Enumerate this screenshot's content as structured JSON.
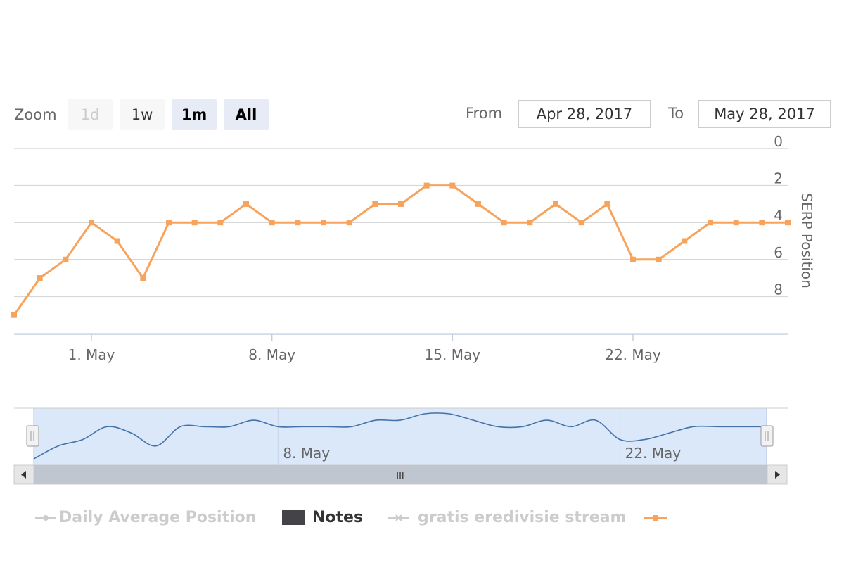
{
  "range_selector": {
    "zoom_label": "Zoom",
    "buttons": [
      {
        "label": "1d",
        "state": "disabled"
      },
      {
        "label": "1w",
        "state": "normal"
      },
      {
        "label": "1m",
        "state": "hover"
      },
      {
        "label": "All",
        "state": "selected"
      }
    ],
    "from_label": "From",
    "from_value": "Apr 28, 2017",
    "to_label": "To",
    "to_value": "May 28, 2017"
  },
  "chart_data": {
    "type": "line",
    "title": "",
    "ylabel": "SERP Position",
    "xlabel": "",
    "y_reversed": true,
    "ylim": [
      0,
      10
    ],
    "y_ticks": [
      "0",
      "2",
      "4",
      "6",
      "8"
    ],
    "x_tick_labels": [
      "1. May",
      "8. May",
      "15. May",
      "22. May"
    ],
    "x": [
      "2017-04-28",
      "2017-04-29",
      "2017-04-30",
      "2017-05-01",
      "2017-05-02",
      "2017-05-03",
      "2017-05-04",
      "2017-05-05",
      "2017-05-06",
      "2017-05-07",
      "2017-05-08",
      "2017-05-09",
      "2017-05-10",
      "2017-05-11",
      "2017-05-12",
      "2017-05-13",
      "2017-05-14",
      "2017-05-15",
      "2017-05-16",
      "2017-05-17",
      "2017-05-18",
      "2017-05-19",
      "2017-05-20",
      "2017-05-21",
      "2017-05-22",
      "2017-05-23",
      "2017-05-24",
      "2017-05-25",
      "2017-05-26",
      "2017-05-27",
      "2017-05-28"
    ],
    "series": [
      {
        "color": "#f7a35c",
        "values": [
          9,
          7,
          6,
          4,
          5,
          7,
          4,
          4,
          4,
          3,
          4,
          4,
          4,
          4,
          3,
          3,
          2,
          2,
          3,
          4,
          4,
          3,
          4,
          3,
          6,
          6,
          5,
          4,
          4,
          4,
          4
        ]
      }
    ],
    "grid": true,
    "navigator": {
      "x_tick_labels": [
        "8. May",
        "22. May"
      ],
      "series_color": "#4572a7",
      "mask_color": "#d6e6f8"
    },
    "scrollbar": {
      "grip": "III"
    }
  },
  "legend": {
    "items": [
      {
        "label": "Daily Average Position",
        "state": "hidden",
        "symbol": "line-dot"
      },
      {
        "label": "Notes",
        "state": "visible",
        "symbol": "flag"
      },
      {
        "label": "gratis eredivisie stream",
        "state": "hidden",
        "symbol": "line-cross"
      },
      {
        "label": "",
        "state": "visible",
        "symbol": "line-square",
        "color": "#f7a35c"
      }
    ]
  }
}
